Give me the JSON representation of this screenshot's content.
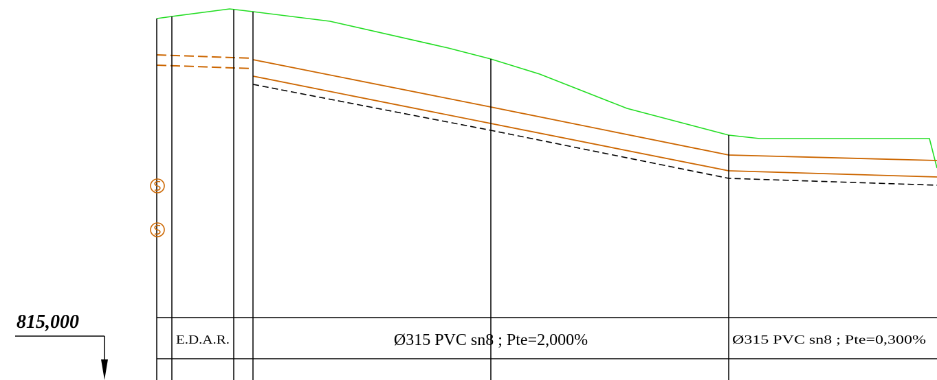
{
  "datum": {
    "elevation": "815,000"
  },
  "labels": {
    "edar": "E.D.A.R.",
    "pipe1": "Ø315 PVC sn8 ; Pte=2,000%",
    "pipe2": "Ø315 PVC sn8 ; Pte=0,300%"
  },
  "colors": {
    "terrain": "#22dd22",
    "pipe": "#cc6600",
    "ink": "#000000",
    "background": "#ffffff"
  },
  "symbols": {
    "manhole": "manhole-icon"
  }
}
